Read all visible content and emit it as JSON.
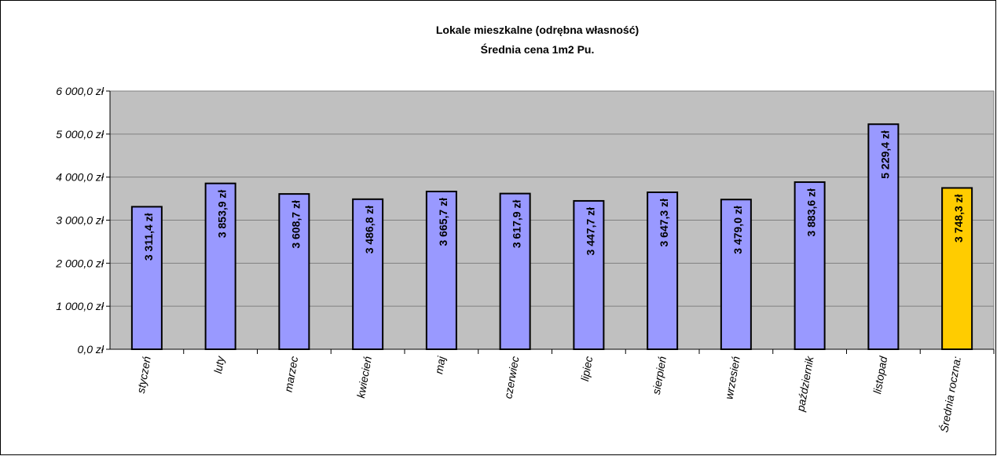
{
  "chart_data": {
    "type": "bar",
    "title": "Lokale mieszkalne (odrębna własność)",
    "subtitle": "Średnia cena 1m2 Pu.",
    "categories": [
      "styczeń",
      "luty",
      "marzec",
      "kwiecień",
      "maj",
      "czerwiec",
      "lipiec",
      "sierpień",
      "wrzesień",
      "październik",
      "listopad",
      "Średnia roczna:"
    ],
    "values": [
      3311.4,
      3853.9,
      3608.7,
      3486.8,
      3665.7,
      3617.9,
      3447.7,
      3647.3,
      3479.0,
      3883.6,
      5229.4,
      3748.3
    ],
    "value_labels": [
      "3 311,4 zł",
      "3 853,9 zł",
      "3 608,7 zł",
      "3 486,8 zł",
      "3 665,7 zł",
      "3 617,9 zł",
      "3 447,7 zł",
      "3 647,3 zł",
      "3 479,0 zł",
      "3 883,6 zł",
      "5 229,4 zł",
      "3 748,3 zł"
    ],
    "colors": [
      "#9999ff",
      "#9999ff",
      "#9999ff",
      "#9999ff",
      "#9999ff",
      "#9999ff",
      "#9999ff",
      "#9999ff",
      "#9999ff",
      "#9999ff",
      "#9999ff",
      "#ffcc00"
    ],
    "ylim": [
      0,
      6000
    ],
    "yticks": [
      {
        "value": 0,
        "label": "0,0 zł"
      },
      {
        "value": 1000,
        "label": "1 000,0 zł"
      },
      {
        "value": 2000,
        "label": "2 000,0 zł"
      },
      {
        "value": 3000,
        "label": "3 000,0 zł"
      },
      {
        "value": 4000,
        "label": "4 000,0 zł"
      },
      {
        "value": 5000,
        "label": "5 000,0 zł"
      },
      {
        "value": 6000,
        "label": "6 000,0 zł"
      }
    ],
    "grid": true,
    "plot_background": "#c0c0c0"
  }
}
